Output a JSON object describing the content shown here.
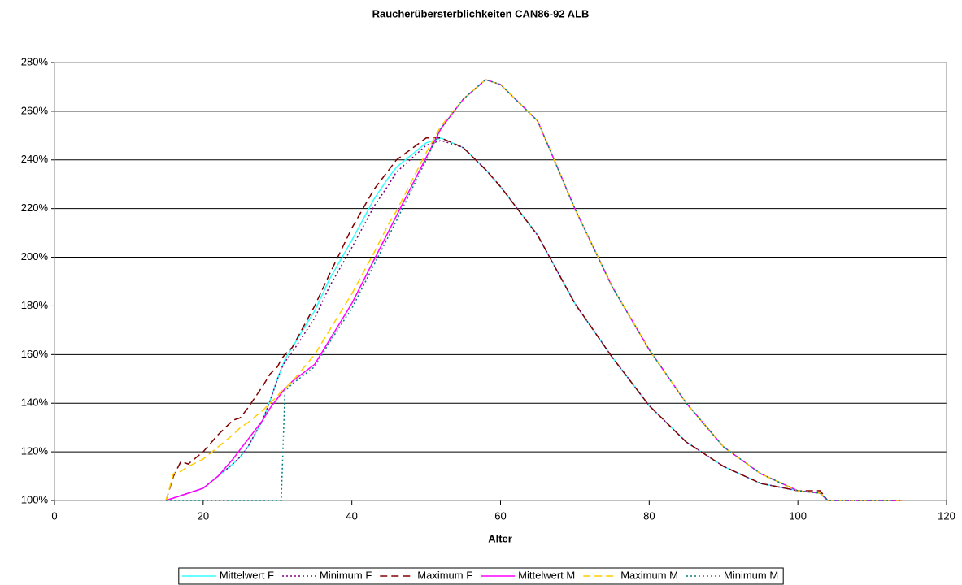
{
  "chart_data": {
    "type": "line",
    "title": "Raucherübersterblichkeiten CAN86-92 ALB",
    "x_label": "Alter",
    "x": [
      15,
      16,
      17,
      18,
      20,
      22,
      24,
      25,
      26,
      28,
      29,
      30,
      30.5,
      31,
      32,
      35,
      37,
      40,
      43,
      45,
      46,
      50,
      52,
      55,
      58,
      60,
      65,
      70,
      75,
      80,
      85,
      90,
      95,
      100,
      103,
      104,
      110,
      114
    ],
    "series": [
      {
        "name": "Mittelwert F",
        "color": "#33ffff",
        "dash": "solid",
        "values": [
          100,
          101,
          102,
          103,
          105,
          110,
          115,
          118,
          122,
          133,
          141,
          150,
          154,
          158,
          163,
          178,
          191,
          207,
          224,
          233,
          237,
          247,
          249,
          245,
          236,
          229,
          209,
          181,
          159,
          139,
          124,
          114,
          107,
          104,
          103,
          100,
          100,
          100
        ]
      },
      {
        "name": "Minimum F",
        "color": "#800080",
        "dash": "dotted",
        "values": [
          100,
          101,
          102,
          103,
          105,
          110,
          115,
          118,
          122,
          133,
          141,
          150,
          154,
          157,
          161,
          175,
          188,
          204,
          221,
          230,
          235,
          246,
          248,
          245,
          236,
          229,
          209,
          181,
          159,
          139,
          124,
          114,
          107,
          104,
          103,
          100,
          100,
          100
        ]
      },
      {
        "name": "Maximum F",
        "color": "#800000",
        "dash": "dashed",
        "values": [
          100,
          110,
          116,
          115,
          120,
          127,
          133,
          134,
          138,
          147,
          152,
          155,
          158,
          160,
          163,
          180,
          193,
          212,
          228,
          236,
          240,
          249,
          249,
          245,
          236,
          229,
          209,
          181,
          159,
          139,
          124,
          114,
          107,
          104,
          104,
          100,
          100,
          100
        ]
      },
      {
        "name": "Mittelwert M",
        "color": "#ff00ff",
        "dash": "solid",
        "values": [
          100,
          101,
          102,
          103,
          105,
          110,
          117,
          121,
          125,
          133,
          138,
          142,
          144,
          146,
          149,
          156,
          166,
          181,
          199,
          211,
          217,
          241,
          253,
          265,
          273,
          271,
          256,
          220,
          188,
          162,
          140,
          122,
          111,
          104,
          103,
          100,
          100,
          100
        ]
      },
      {
        "name": "Maximum M",
        "color": "#ffcc00",
        "dash": "dashed",
        "values": [
          100,
          111,
          112,
          114,
          117,
          122,
          127,
          130,
          132,
          137,
          140,
          143,
          145,
          146,
          149,
          160,
          170,
          185,
          202,
          214,
          219,
          243,
          254,
          265,
          273,
          271,
          256,
          220,
          188,
          162,
          140,
          122,
          111,
          104,
          103,
          100,
          100,
          100
        ]
      },
      {
        "name": "Minimum M",
        "color": "#008080",
        "dash": "dotted",
        "values": [
          100,
          100,
          100,
          100,
          100,
          100,
          100,
          100,
          100,
          100,
          100,
          100,
          100,
          145,
          148,
          155,
          165,
          179,
          197,
          209,
          215,
          240,
          253,
          265,
          273,
          271,
          256,
          220,
          188,
          162,
          140,
          122,
          111,
          104,
          103,
          100,
          100,
          100
        ]
      }
    ],
    "xlim": [
      0,
      120
    ],
    "xticks": [
      0,
      20,
      40,
      60,
      80,
      100,
      120
    ],
    "ylim": [
      100,
      280
    ],
    "yticks": [
      {
        "value": 100,
        "label": "100%"
      },
      {
        "value": 120,
        "label": "120%"
      },
      {
        "value": 140,
        "label": "140%"
      },
      {
        "value": 160,
        "label": "160%"
      },
      {
        "value": 180,
        "label": "180%"
      },
      {
        "value": 200,
        "label": "200%"
      },
      {
        "value": 220,
        "label": "220%"
      },
      {
        "value": 240,
        "label": "240%"
      },
      {
        "value": 260,
        "label": "260%"
      },
      {
        "value": 280,
        "label": "280%"
      }
    ],
    "grid": true,
    "legend": "bottom"
  }
}
